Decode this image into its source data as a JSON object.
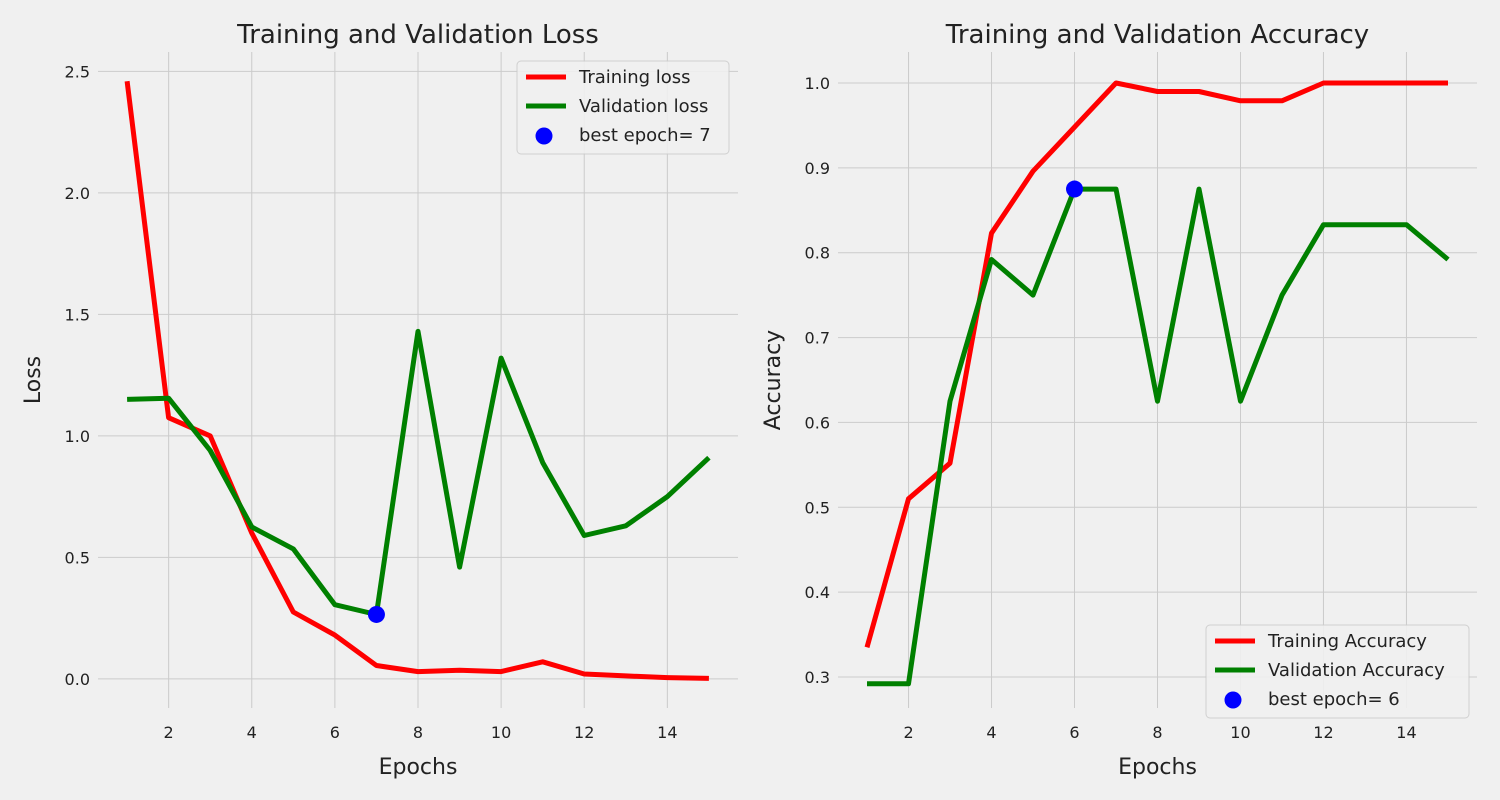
{
  "chart_data": [
    {
      "type": "line",
      "title": "Training and Validation Loss",
      "xlabel": "Epochs",
      "ylabel": "Loss",
      "xlim": [
        0.3,
        15.7
      ],
      "ylim": [
        -0.12,
        2.58
      ],
      "xticks": [
        2,
        4,
        6,
        8,
        10,
        12,
        14
      ],
      "yticks": [
        0.0,
        0.5,
        1.0,
        1.5,
        2.0,
        2.5
      ],
      "ytick_labels": [
        "0.0",
        "0.5",
        "1.0",
        "1.5",
        "2.0",
        "2.5"
      ],
      "grid": true,
      "legend_position": "upper right",
      "x": [
        1,
        2,
        3,
        4,
        5,
        6,
        7,
        8,
        9,
        10,
        11,
        12,
        13,
        14,
        15
      ],
      "series": [
        {
          "name": "Training loss",
          "color": "#ff0000",
          "values": [
            2.46,
            1.075,
            1.0,
            0.6,
            0.275,
            0.18,
            0.055,
            0.03,
            0.035,
            0.03,
            0.07,
            0.02,
            0.012,
            0.005,
            0.002
          ]
        },
        {
          "name": "Validation loss",
          "color": "#008000",
          "values": [
            1.15,
            1.155,
            0.94,
            0.625,
            0.535,
            0.305,
            0.265,
            1.43,
            0.46,
            1.32,
            0.89,
            0.59,
            0.63,
            0.75,
            0.91
          ]
        }
      ],
      "best": {
        "label": "best epoch= 7",
        "x": 7,
        "y": 0.265,
        "color": "#0000ff"
      }
    },
    {
      "type": "line",
      "title": "Training and Validation Accuracy",
      "xlabel": "Epochs",
      "ylabel": "Accuracy",
      "xlim": [
        0.3,
        15.7
      ],
      "ylim": [
        0.2635,
        1.0365
      ],
      "xticks": [
        2,
        4,
        6,
        8,
        10,
        12,
        14
      ],
      "yticks": [
        0.3,
        0.4,
        0.5,
        0.6,
        0.7,
        0.8,
        0.9,
        1.0
      ],
      "ytick_labels": [
        "0.3",
        "0.4",
        "0.5",
        "0.6",
        "0.7",
        "0.8",
        "0.9",
        "1.0"
      ],
      "grid": true,
      "legend_position": "lower right",
      "x": [
        1,
        2,
        3,
        4,
        5,
        6,
        7,
        8,
        9,
        10,
        11,
        12,
        13,
        14,
        15
      ],
      "series": [
        {
          "name": "Training Accuracy",
          "color": "#ff0000",
          "values": [
            0.335,
            0.51,
            0.552,
            0.823,
            0.896,
            0.948,
            1.0,
            0.99,
            0.99,
            0.979,
            0.979,
            1.0,
            1.0,
            1.0,
            1.0
          ]
        },
        {
          "name": "Validation Accuracy",
          "color": "#008000",
          "values": [
            0.292,
            0.292,
            0.625,
            0.792,
            0.75,
            0.875,
            0.875,
            0.625,
            0.875,
            0.625,
            0.75,
            0.833,
            0.833,
            0.833,
            0.792
          ]
        }
      ],
      "best": {
        "label": "best epoch= 6",
        "x": 6,
        "y": 0.875,
        "color": "#0000ff"
      }
    }
  ]
}
